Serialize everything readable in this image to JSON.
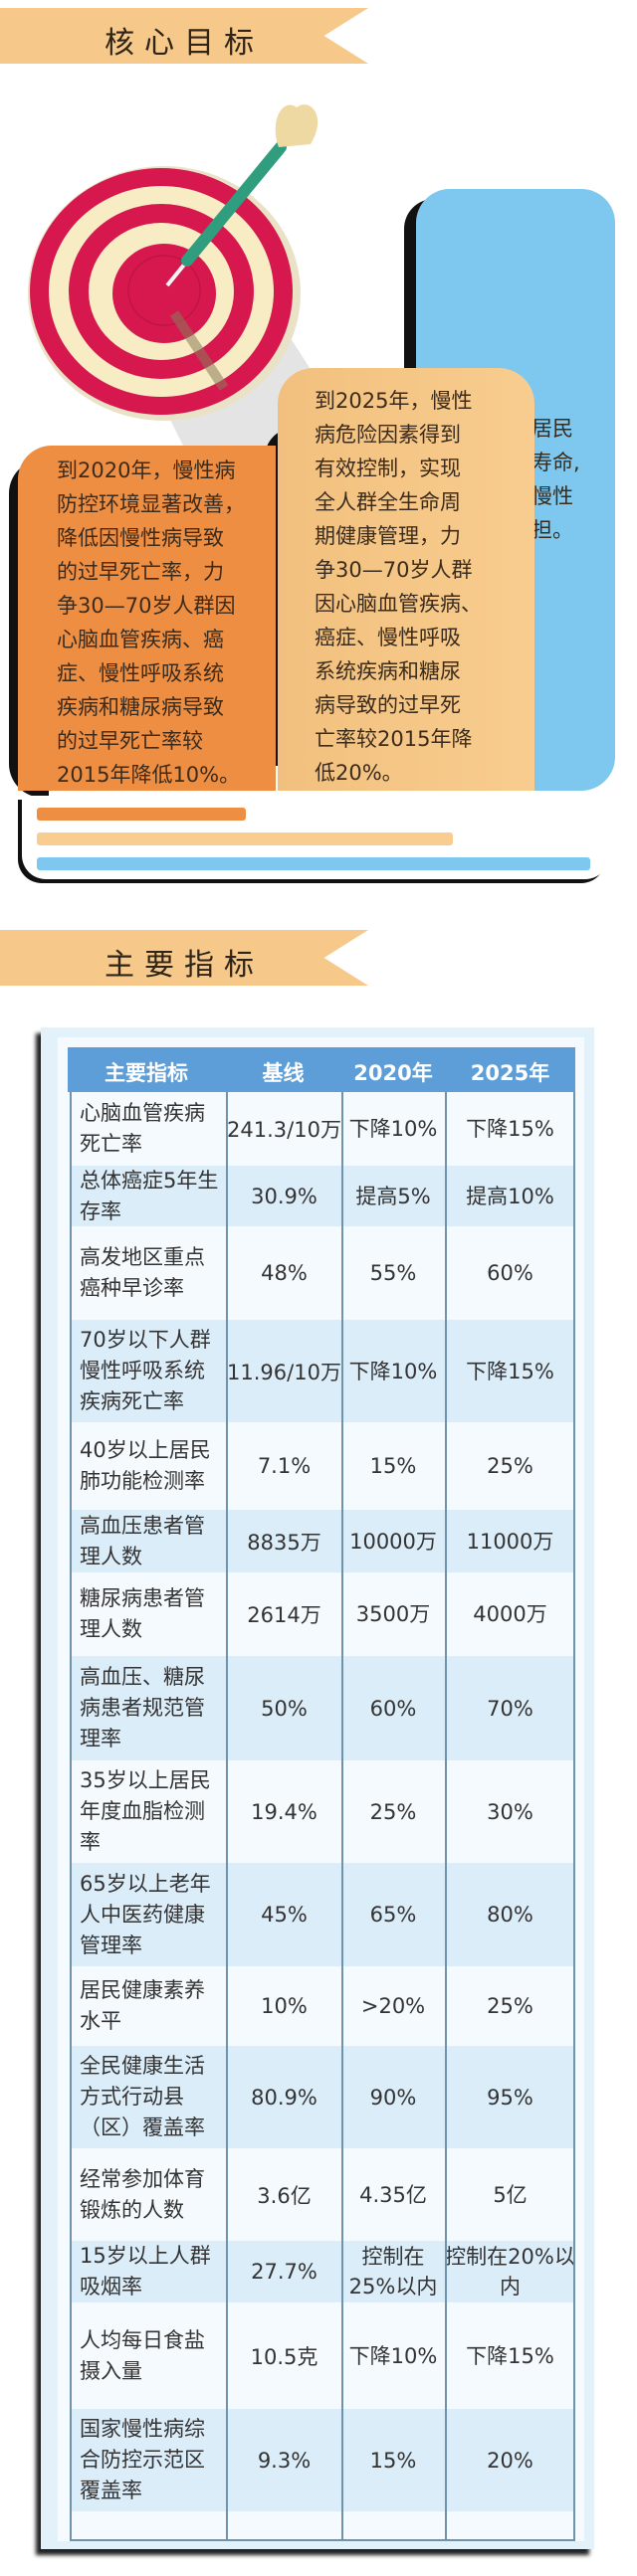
{
  "section1": {
    "title": "核心目标",
    "blue_card": [
      "逐步提高居民",
      "健康期望寿命,",
      "有效控制慢性",
      "病疾病负担。"
    ],
    "goal_2025": [
      "到2025年，慢性",
      "病危险因素得到",
      "有效控制，实现",
      "全人群全生命周",
      "期健康管理，力",
      "争30—70岁人群",
      "因心脑血管疾病、",
      "癌症、慢性呼吸",
      "系统疾病和糖尿",
      "病导致的过早死",
      "亡率较2015年降",
      "低20%。"
    ],
    "goal_2020": [
      "到2020年，慢性病",
      "防控环境显著改善，",
      "降低因慢性病导致",
      "的过早死亡率，力",
      "争30—70岁人群因",
      "心脑血管疾病、癌",
      "症、慢性呼吸系统",
      "疾病和糖尿病导致",
      "的过早死亡率较",
      "2015年降低10%。"
    ]
  },
  "section2": {
    "title": "主要指标",
    "table": {
      "headers": [
        "主要指标",
        "基线",
        "2020年",
        "2025年"
      ],
      "rows": [
        [
          "心脑血管疾病死亡率",
          "241.3/10万",
          "下降10%",
          "下降15%"
        ],
        [
          "总体癌症5年生存率",
          "30.9%",
          "提高5%",
          "提高10%"
        ],
        [
          "高发地区重点癌种早诊率",
          "48%",
          "55%",
          "60%"
        ],
        [
          "70岁以下人群慢性呼吸系统疾病死亡率",
          "11.96/10万",
          "下降10%",
          "下降15%"
        ],
        [
          "40岁以上居民肺功能检测率",
          "7.1%",
          "15%",
          "25%"
        ],
        [
          "高血压患者管理人数",
          "8835万",
          "10000万",
          "11000万"
        ],
        [
          "糖尿病患者管理人数",
          "2614万",
          "3500万",
          "4000万"
        ],
        [
          "高血压、糖尿病患者规范管理率",
          "50%",
          "60%",
          "70%"
        ],
        [
          "35岁以上居民年度血脂检测率",
          "19.4%",
          "25%",
          "30%"
        ],
        [
          "65岁以上老年人中医药健康管理率",
          "45%",
          "65%",
          "80%"
        ],
        [
          "居民健康素养水平",
          "10%",
          ">20%",
          "25%"
        ],
        [
          "全民健康生活方式行动县（区）覆盖率",
          "80.9%",
          "90%",
          "95%"
        ],
        [
          "经常参加体育锻炼的人数",
          "3.6亿",
          "4.35亿",
          "5亿"
        ],
        [
          "15岁以上人群吸烟率",
          "27.7%",
          "控制在25%以内",
          "控制在20%以内"
        ],
        [
          "人均每日食盐摄入量",
          "10.5克",
          "下降10%",
          "下降15%"
        ],
        [
          "国家慢性病综合防控示范区覆盖率",
          "9.3%",
          "15%",
          "20%"
        ]
      ]
    }
  },
  "colors": {
    "banner": "#f6c98b",
    "card_2020": "#ee8e42",
    "card_2025": "#f6c78b",
    "card_blue": "#7ec8ef",
    "target_red": "#d6184f",
    "target_cream": "#f8ecc4",
    "dart_green": "#2f9d7e",
    "table_header": "#5e9ed8",
    "table_row_alt": "#dcedfa"
  },
  "icons": [
    "dartboard-target-icon",
    "dart-icon"
  ]
}
